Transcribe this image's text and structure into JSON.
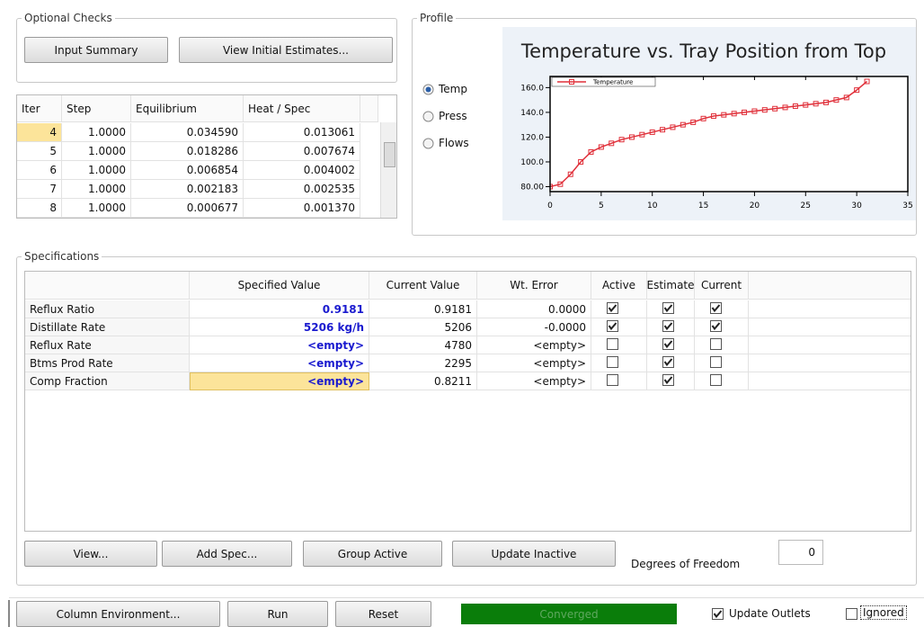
{
  "optional_checks": {
    "title": "Optional Checks",
    "buttons": [
      "Input Summary",
      "View Initial Estimates..."
    ]
  },
  "iterations": {
    "columns": [
      "Iter",
      "Step",
      "Equilibrium",
      "Heat / Spec"
    ],
    "rows": [
      [
        "4",
        "1.0000",
        "0.034590",
        "0.013061"
      ],
      [
        "5",
        "1.0000",
        "0.018286",
        "0.007674"
      ],
      [
        "6",
        "1.0000",
        "0.006854",
        "0.004002"
      ],
      [
        "7",
        "1.0000",
        "0.002183",
        "0.002535"
      ],
      [
        "8",
        "1.0000",
        "0.000677",
        "0.001370"
      ]
    ]
  },
  "profile": {
    "title": "Profile",
    "options": [
      {
        "label": "Temp",
        "selected": true
      },
      {
        "label": "Press",
        "selected": false
      },
      {
        "label": "Flows",
        "selected": false
      }
    ],
    "chart_data": {
      "type": "line",
      "title": "Temperature vs. Tray Position from Top",
      "x": [
        0,
        1,
        2,
        3,
        4,
        5,
        6,
        7,
        8,
        9,
        10,
        11,
        12,
        13,
        14,
        15,
        16,
        17,
        18,
        19,
        20,
        21,
        22,
        23,
        24,
        25,
        26,
        27,
        28,
        29,
        30,
        31
      ],
      "series": [
        {
          "name": "Temperature",
          "color": "#e0303a",
          "values": [
            80,
            82,
            90,
            100,
            108,
            112,
            115,
            118,
            120,
            122,
            124,
            126,
            128,
            130,
            132,
            135,
            137,
            138,
            139,
            140,
            141,
            142,
            143,
            144,
            145,
            146,
            147,
            148,
            150,
            152,
            158,
            165
          ]
        }
      ],
      "xlim": [
        0,
        35
      ],
      "ylim": [
        76,
        169
      ],
      "xticks": [
        0,
        5,
        10,
        15,
        20,
        25,
        30,
        35
      ],
      "yticks": [
        {
          "value": 80,
          "label": "80.00"
        },
        {
          "value": 100,
          "label": "100.0"
        },
        {
          "value": 120,
          "label": "120.0"
        },
        {
          "value": 140,
          "label": "140.0"
        },
        {
          "value": 160,
          "label": "160.0"
        }
      ],
      "legend": "upper left"
    }
  },
  "specifications": {
    "title": "Specifications",
    "columns": [
      "Specified Value",
      "Current Value",
      "Wt. Error",
      "Active",
      "Estimate",
      "Current"
    ],
    "rows": [
      {
        "name": "Reflux Ratio",
        "specified": "0.9181",
        "current": "0.9181",
        "error": "0.0000",
        "active": true,
        "estimate": true,
        "current_flag": true
      },
      {
        "name": "Distillate Rate",
        "specified": "5206 kg/h",
        "current": "5206",
        "error": "-0.0000",
        "active": true,
        "estimate": true,
        "current_flag": true
      },
      {
        "name": "Reflux Rate",
        "specified": "<empty>",
        "current": "4780",
        "error": "<empty>",
        "active": false,
        "estimate": true,
        "current_flag": false
      },
      {
        "name": "Btms Prod Rate",
        "specified": "<empty>",
        "current": "2295",
        "error": "<empty>",
        "active": false,
        "estimate": true,
        "current_flag": false
      },
      {
        "name": "Comp Fraction",
        "specified": "<empty>",
        "current": "0.8211",
        "error": "<empty>",
        "active": false,
        "estimate": true,
        "current_flag": false
      }
    ],
    "buttons": [
      "View...",
      "Add Spec...",
      "Group Active",
      "Update Inactive"
    ],
    "dof_label": "Degrees of Freedom",
    "dof_value": "0"
  },
  "footer": {
    "buttons": [
      "Column Environment...",
      "Run",
      "Reset"
    ],
    "status": "Converged",
    "update_outlets": {
      "label": "Update Outlets",
      "checked": true
    },
    "ignored": {
      "label": "Ignored",
      "checked": false
    }
  }
}
